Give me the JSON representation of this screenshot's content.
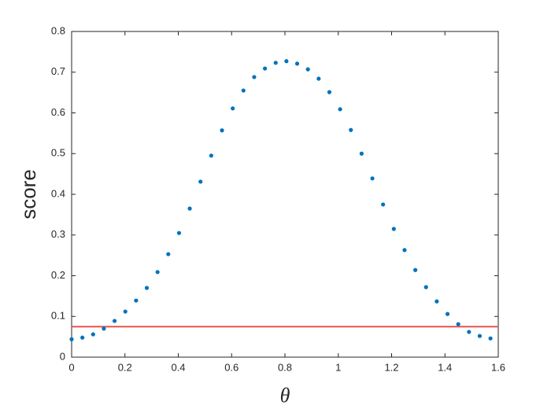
{
  "chart_data": {
    "type": "scatter",
    "xlabel": "θ",
    "ylabel": "score",
    "xlim": [
      0,
      1.6
    ],
    "ylim": [
      0,
      0.8
    ],
    "xticks": [
      0,
      0.2,
      0.4,
      0.6,
      0.8,
      1,
      1.2,
      1.4,
      1.6
    ],
    "yticks": [
      0,
      0.1,
      0.2,
      0.3,
      0.4,
      0.5,
      0.6,
      0.7,
      0.8
    ],
    "color": "#0072bd",
    "x": [
      0,
      0.0403,
      0.0806,
      0.1208,
      0.1611,
      0.2014,
      0.2417,
      0.2819,
      0.3222,
      0.3625,
      0.4028,
      0.443,
      0.4833,
      0.5236,
      0.5639,
      0.6042,
      0.6444,
      0.6847,
      0.725,
      0.7653,
      0.8055,
      0.8458,
      0.8861,
      0.9264,
      0.9666,
      1.0069,
      1.0472,
      1.0875,
      1.1278,
      1.168,
      1.2083,
      1.2486,
      1.2889,
      1.3291,
      1.3694,
      1.4097,
      1.45,
      1.4902,
      1.5305,
      1.5708
    ],
    "values": [
      0.044,
      0.048,
      0.056,
      0.07,
      0.089,
      0.112,
      0.139,
      0.17,
      0.209,
      0.253,
      0.305,
      0.365,
      0.431,
      0.495,
      0.557,
      0.611,
      0.655,
      0.688,
      0.709,
      0.723,
      0.727,
      0.721,
      0.707,
      0.684,
      0.651,
      0.609,
      0.558,
      0.5,
      0.439,
      0.375,
      0.315,
      0.263,
      0.214,
      0.172,
      0.137,
      0.106,
      0.081,
      0.062,
      0.052,
      0.046
    ],
    "hline": {
      "value": 0.075,
      "color": "#e8524f"
    }
  }
}
